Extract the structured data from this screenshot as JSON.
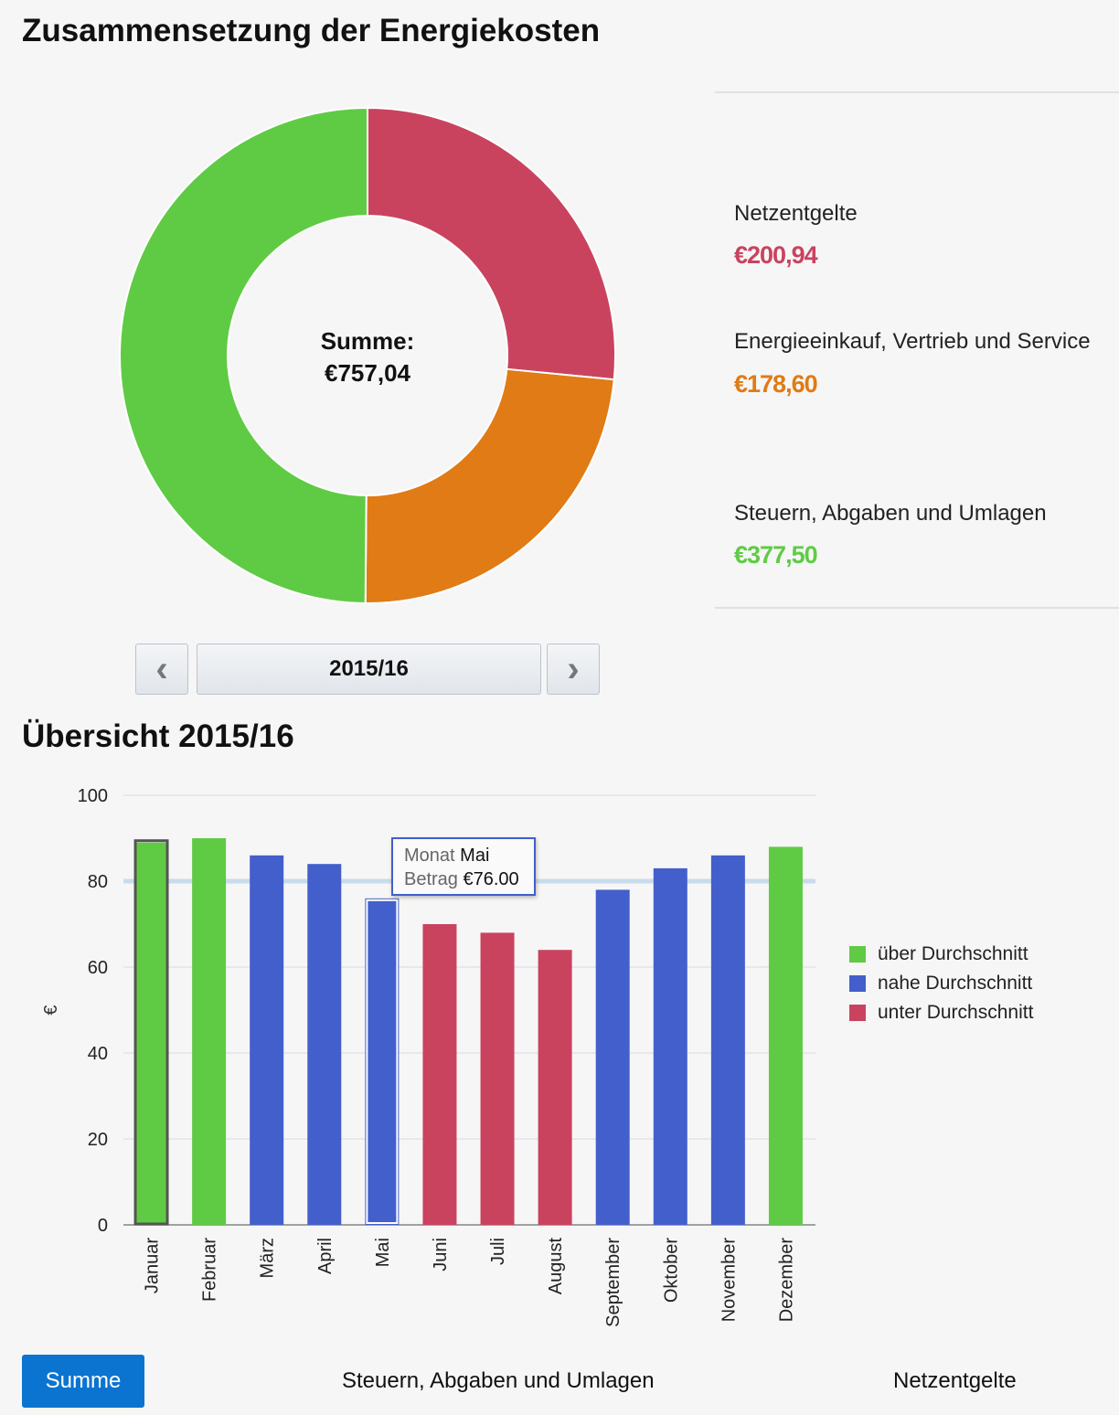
{
  "title": "Zusammensetzung der Energiekosten",
  "donut": {
    "center_label": "Summe:",
    "center_value": "€757,04",
    "items": [
      {
        "label": "Netzentgelte",
        "value_text": "€200,94",
        "value": 200.94,
        "color": "#c9435f"
      },
      {
        "label": "Energieeinkauf, Vertrieb und Service",
        "value_text": "€178,60",
        "value": 178.6,
        "color": "#e07b16"
      },
      {
        "label": "Steuern, Abgaben und Umlagen",
        "value_text": "€377,50",
        "value": 377.5,
        "color": "#5fcb44"
      }
    ]
  },
  "nav": {
    "prev": "‹",
    "period": "2015/16",
    "next": "›"
  },
  "overview_title": "Übersicht 2015/16",
  "chart_data": {
    "type": "bar",
    "ylabel": "€",
    "ylim": [
      0,
      100
    ],
    "yticks": [
      0,
      20,
      40,
      60,
      80,
      100
    ],
    "average_line": 80,
    "categories": [
      "Januar",
      "Februar",
      "März",
      "April",
      "Mai",
      "Juni",
      "Juli",
      "August",
      "September",
      "Oktober",
      "November",
      "Dezember"
    ],
    "values": [
      89,
      90,
      86,
      84,
      76,
      70,
      68,
      64,
      78,
      83,
      86,
      88
    ],
    "classes": [
      "über",
      "über",
      "nahe",
      "nahe",
      "nahe",
      "unter",
      "unter",
      "unter",
      "nahe",
      "nahe",
      "nahe",
      "über"
    ],
    "legend": [
      {
        "key": "über",
        "label": "über Durchschnitt",
        "color": "#5fcb44"
      },
      {
        "key": "nahe",
        "label": "nahe Durchschnitt",
        "color": "#435fcb"
      },
      {
        "key": "unter",
        "label": "unter Durchschnitt",
        "color": "#c9435f"
      }
    ],
    "legend_position": "right",
    "tooltip": {
      "k1": "Monat",
      "v1": "Mai",
      "k2": "Betrag",
      "v2": "€76.00"
    }
  },
  "bottom_tabs": [
    "Summe",
    "Steuern, Abgaben und Umlagen",
    "Netzentgelte"
  ]
}
